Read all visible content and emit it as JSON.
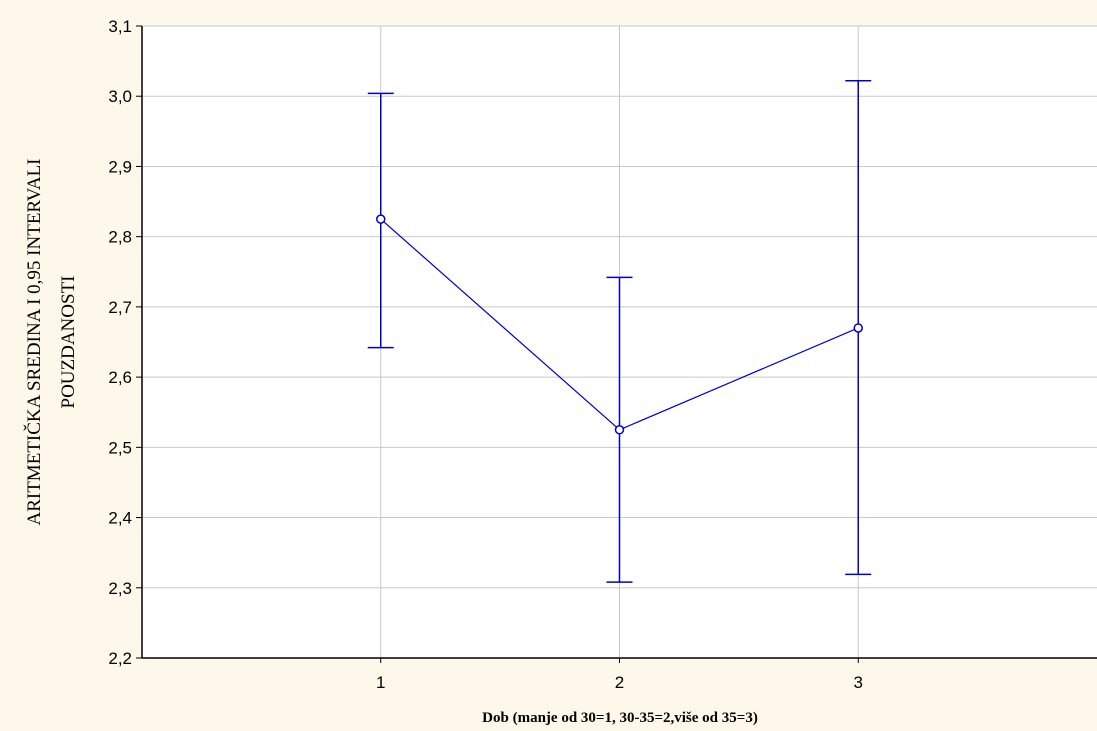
{
  "chart_data": {
    "type": "line",
    "title": "",
    "xlabel": "Dob (manje od 30=1, 30-35=2,više od 35=3)",
    "ylabel_lines": [
      "ARITMETIČKA SREDINA I 0,95 INTERVALI",
      "POUZDANOSTI"
    ],
    "x": [
      1,
      2,
      3
    ],
    "x_tick_labels": [
      "1",
      "2",
      "3"
    ],
    "xlim": [
      0,
      4
    ],
    "y_ticks": [
      2.2,
      2.3,
      2.4,
      2.5,
      2.6,
      2.7,
      2.8,
      2.9,
      3.0,
      3.1
    ],
    "y_tick_labels": [
      "2,2",
      "2,3",
      "2,4",
      "2,5",
      "2,6",
      "2,7",
      "2,8",
      "2,9",
      "3,0",
      "3,1"
    ],
    "ylim": [
      2.2,
      3.1
    ],
    "grid": true,
    "series": [
      {
        "values": [
          2.825,
          2.525,
          2.67
        ],
        "ci_lower": [
          2.642,
          2.308,
          2.319
        ],
        "ci_upper": [
          3.004,
          2.742,
          3.022
        ],
        "color": "#0000cc"
      }
    ],
    "background": "#fdf8ea",
    "plot_background": "#ffffff",
    "grid_color": "#c8c8c8"
  }
}
